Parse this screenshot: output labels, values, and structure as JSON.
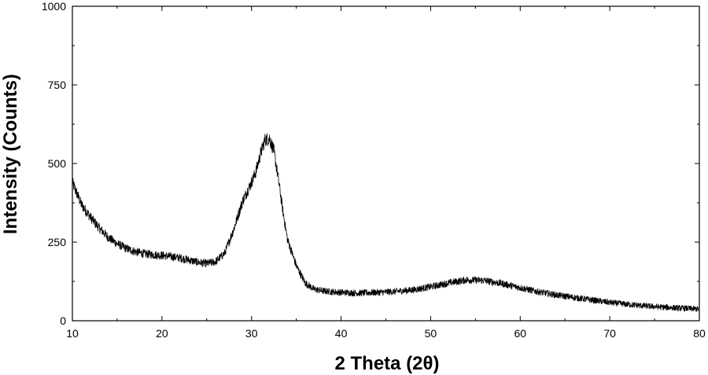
{
  "chart_data": {
    "type": "line",
    "title": "",
    "xlabel": "2 Theta (2θ)",
    "ylabel": "Intensity (Counts)",
    "xlim": [
      10,
      80
    ],
    "ylim": [
      0,
      1000
    ],
    "x_ticks": [
      10,
      20,
      30,
      40,
      50,
      60,
      70,
      80
    ],
    "y_ticks": [
      0,
      250,
      500,
      750,
      1000
    ],
    "x_tick_labels": [
      "10",
      "20",
      "30",
      "40",
      "50",
      "60",
      "70",
      "80"
    ],
    "y_tick_labels": [
      "0",
      "250",
      "500",
      "750",
      "1000"
    ],
    "grid": false,
    "legend": "none",
    "series": [
      {
        "color": "#000000",
        "x": [
          10,
          11,
          12,
          13,
          14,
          15,
          16,
          17,
          18,
          19,
          20,
          21,
          22,
          23,
          24,
          25,
          26,
          27,
          28,
          29,
          30,
          30.5,
          31,
          31.5,
          32,
          32.5,
          33,
          33.5,
          34,
          35,
          36,
          37,
          38,
          39,
          40,
          42,
          44,
          46,
          48,
          50,
          52,
          54,
          56,
          58,
          60,
          62,
          64,
          66,
          68,
          70,
          72,
          74,
          76,
          78,
          80
        ],
        "y": [
          440,
          370,
          330,
          295,
          265,
          245,
          230,
          220,
          213,
          210,
          208,
          204,
          200,
          193,
          186,
          182,
          188,
          215,
          290,
          380,
          440,
          475,
          530,
          575,
          580,
          540,
          450,
          350,
          260,
          175,
          120,
          100,
          95,
          92,
          90,
          88,
          90,
          93,
          98,
          108,
          120,
          130,
          128,
          118,
          105,
          92,
          82,
          74,
          66,
          58,
          52,
          47,
          43,
          40,
          37
        ],
        "noise_amplitude": 14
      }
    ]
  }
}
